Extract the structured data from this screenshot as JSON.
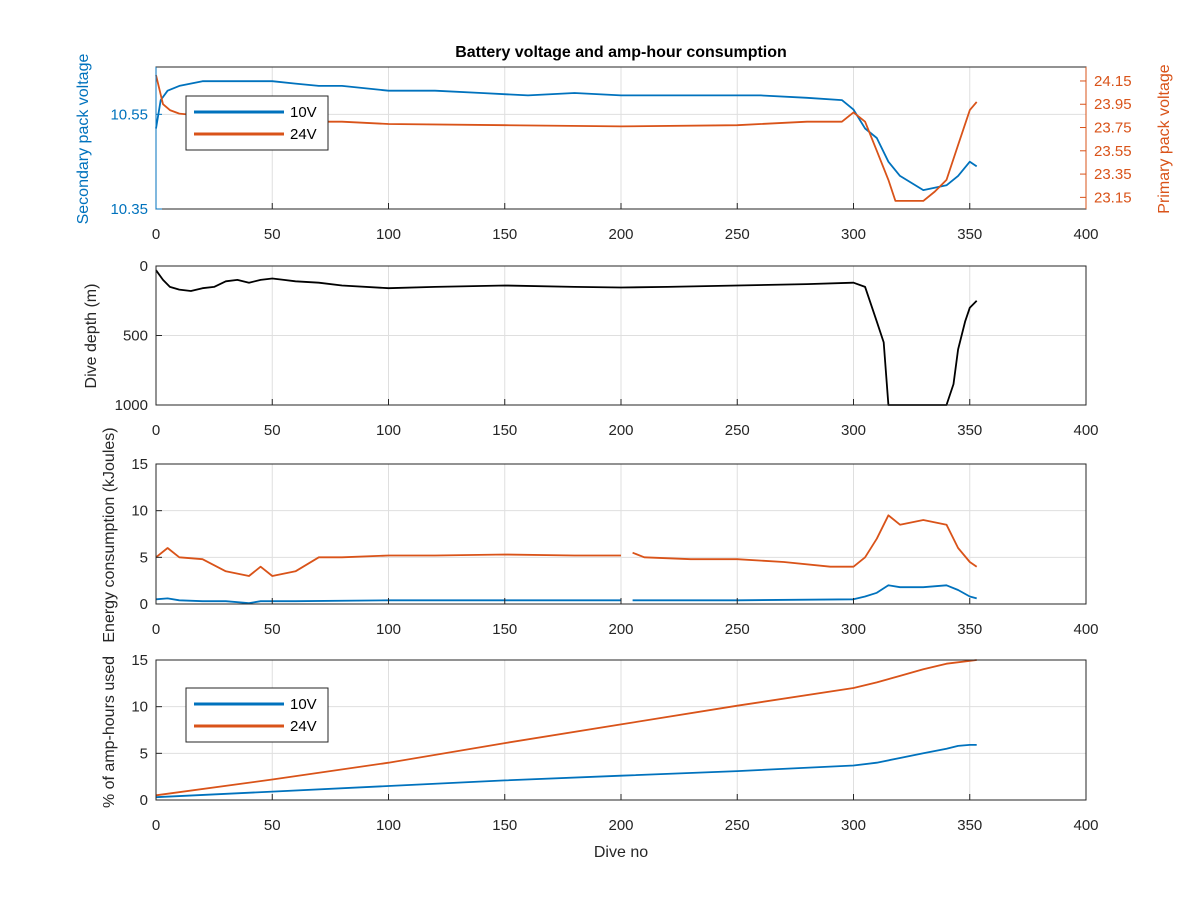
{
  "colors": {
    "blue": "#0072BD",
    "orange": "#D95319",
    "black": "#000000",
    "grid": "#DFDFDF",
    "axis": "#262626"
  },
  "x_axis": {
    "label": "Dive no",
    "range": [
      0,
      400
    ],
    "ticks": [
      0,
      50,
      100,
      150,
      200,
      250,
      300,
      350,
      400
    ]
  },
  "chart_data": [
    {
      "type": "line",
      "title": "Battery voltage and amp-hour consumption",
      "xlabel": "",
      "ylabel": "Secondary pack voltage",
      "ylabel_right": "Primary pack voltage",
      "xlim": [
        0,
        400
      ],
      "ylim": [
        10.35,
        10.65
      ],
      "ylim_right": [
        23.05,
        24.27
      ],
      "yticks": [
        "10.35",
        "10.55"
      ],
      "yticks_right": [
        "23.15",
        "23.35",
        "23.55",
        "23.75",
        "23.95",
        "24.15"
      ],
      "grid": true,
      "legend": "top-left",
      "series": [
        {
          "name": "10V",
          "axis": "left",
          "color": "#0072BD",
          "x": [
            0,
            2,
            5,
            10,
            20,
            30,
            40,
            50,
            60,
            70,
            80,
            100,
            120,
            140,
            160,
            180,
            200,
            220,
            240,
            260,
            280,
            295,
            300,
            305,
            310,
            315,
            320,
            330,
            340,
            345,
            350,
            353
          ],
          "y": [
            10.52,
            10.58,
            10.6,
            10.61,
            10.62,
            10.62,
            10.62,
            10.62,
            10.615,
            10.61,
            10.61,
            10.6,
            10.6,
            10.595,
            10.59,
            10.595,
            10.59,
            10.59,
            10.59,
            10.59,
            10.585,
            10.58,
            10.56,
            10.52,
            10.5,
            10.45,
            10.42,
            10.39,
            10.4,
            10.42,
            10.45,
            10.44
          ]
        },
        {
          "name": "24V",
          "axis": "right",
          "color": "#D95319",
          "x": [
            0,
            3,
            6,
            10,
            20,
            30,
            40,
            50,
            55,
            60,
            70,
            80,
            100,
            150,
            200,
            250,
            280,
            295,
            300,
            305,
            310,
            315,
            318,
            330,
            335,
            340,
            345,
            350,
            353
          ],
          "y": [
            24.2,
            23.95,
            23.9,
            23.87,
            23.85,
            23.85,
            23.84,
            23.95,
            23.9,
            23.82,
            23.8,
            23.8,
            23.78,
            23.77,
            23.76,
            23.77,
            23.8,
            23.8,
            23.88,
            23.8,
            23.55,
            23.3,
            23.12,
            23.12,
            23.2,
            23.3,
            23.6,
            23.9,
            23.97
          ]
        }
      ]
    },
    {
      "type": "line",
      "title": "",
      "xlabel": "",
      "ylabel": "Dive depth (m)",
      "xlim": [
        0,
        400
      ],
      "ylim": [
        1000,
        0
      ],
      "yticks": [
        "0",
        "500",
        "1000"
      ],
      "grid": true,
      "series": [
        {
          "color": "#000000",
          "x": [
            0,
            3,
            6,
            10,
            15,
            20,
            25,
            30,
            35,
            40,
            45,
            50,
            55,
            60,
            70,
            80,
            100,
            120,
            150,
            180,
            200,
            220,
            250,
            280,
            300,
            305,
            310,
            313,
            315,
            320,
            330,
            340,
            343,
            345,
            348,
            350,
            353
          ],
          "y": [
            30,
            100,
            150,
            170,
            180,
            160,
            150,
            110,
            100,
            120,
            100,
            90,
            100,
            110,
            120,
            140,
            160,
            150,
            140,
            150,
            155,
            150,
            140,
            130,
            120,
            150,
            400,
            550,
            1000,
            1000,
            1000,
            1000,
            850,
            600,
            400,
            300,
            250
          ]
        }
      ]
    },
    {
      "type": "line",
      "title": "",
      "xlabel": "",
      "ylabel": "Energy consumption (kJoules)",
      "xlim": [
        0,
        400
      ],
      "ylim": [
        0,
        15
      ],
      "yticks": [
        "0",
        "5",
        "10",
        "15"
      ],
      "grid": true,
      "series": [
        {
          "color": "#D95319",
          "x": [
            0,
            5,
            10,
            20,
            30,
            40,
            45,
            50,
            60,
            70,
            80,
            100,
            120,
            150,
            180,
            200,
            202,
            205,
            210,
            230,
            250,
            270,
            290,
            300,
            305,
            310,
            315,
            320,
            330,
            340,
            345,
            350,
            353
          ],
          "y": [
            5,
            6,
            5,
            4.8,
            3.5,
            3,
            4,
            3,
            3.5,
            5,
            5,
            5.2,
            5.2,
            5.3,
            5.2,
            5.2,
            null,
            5.5,
            5,
            4.8,
            4.8,
            4.5,
            4,
            4,
            5,
            7,
            9.5,
            8.5,
            9,
            8.5,
            6,
            4.5,
            4
          ]
        },
        {
          "color": "#0072BD",
          "x": [
            0,
            5,
            10,
            20,
            30,
            40,
            45,
            50,
            60,
            100,
            150,
            200,
            202,
            205,
            250,
            300,
            305,
            310,
            315,
            320,
            330,
            340,
            345,
            350,
            353
          ],
          "y": [
            0.5,
            0.6,
            0.4,
            0.3,
            0.3,
            0.1,
            0.3,
            0.3,
            0.3,
            0.4,
            0.4,
            0.4,
            null,
            0.4,
            0.4,
            0.5,
            0.8,
            1.2,
            2,
            1.8,
            1.8,
            2,
            1.5,
            0.8,
            0.6
          ]
        }
      ]
    },
    {
      "type": "line",
      "title": "",
      "xlabel": "Dive no",
      "ylabel": "% of amp-hours used",
      "xlim": [
        0,
        400
      ],
      "ylim": [
        0,
        15
      ],
      "yticks": [
        "0",
        "5",
        "10",
        "15"
      ],
      "grid": true,
      "legend": "top-left",
      "series": [
        {
          "name": "10V",
          "color": "#0072BD",
          "x": [
            0,
            50,
            100,
            150,
            200,
            250,
            300,
            310,
            320,
            330,
            340,
            345,
            350,
            353
          ],
          "y": [
            0.3,
            0.9,
            1.5,
            2.1,
            2.6,
            3.1,
            3.7,
            4.0,
            4.5,
            5.0,
            5.5,
            5.8,
            5.9,
            5.9
          ]
        },
        {
          "name": "24V",
          "color": "#D95319",
          "x": [
            0,
            50,
            100,
            150,
            200,
            250,
            300,
            310,
            320,
            330,
            340,
            350,
            353
          ],
          "y": [
            0.5,
            2.2,
            4.0,
            6.1,
            8.1,
            10.1,
            12.0,
            12.6,
            13.3,
            14.0,
            14.6,
            14.9,
            15.0
          ]
        }
      ]
    }
  ]
}
